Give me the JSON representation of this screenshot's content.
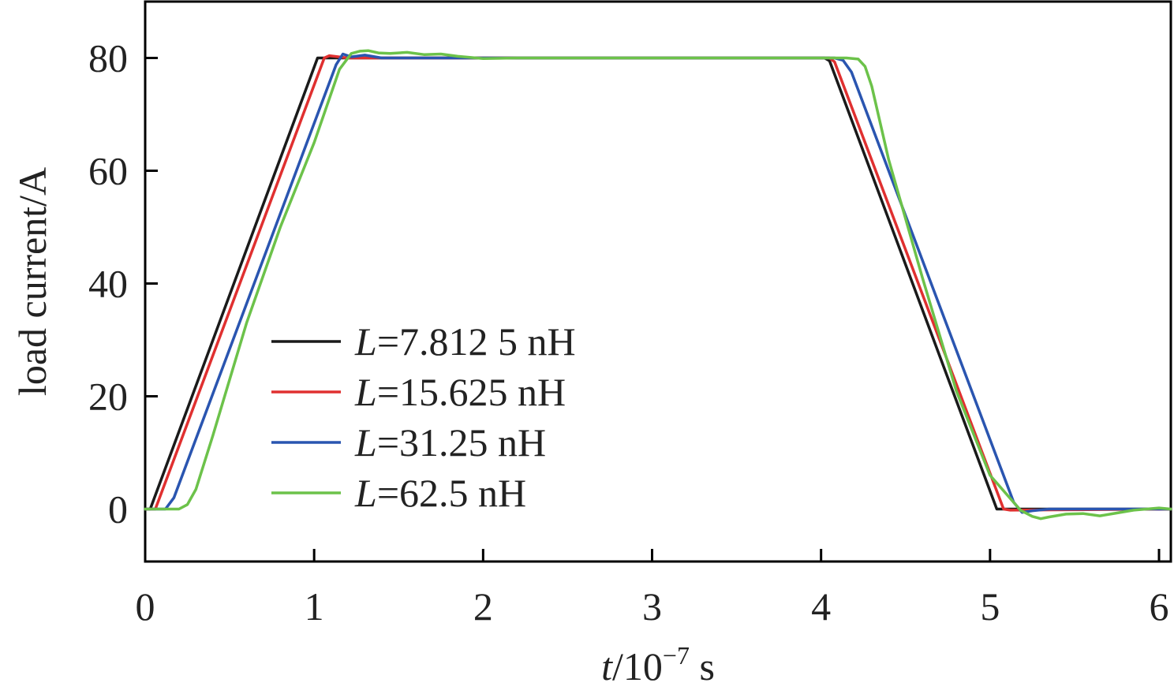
{
  "chart_data": {
    "type": "line",
    "title": "",
    "xlabel": {
      "italic": "t",
      "rest": "/10",
      "sup": "−7",
      "unit": " s"
    },
    "ylabel": "load current/A",
    "xlim": [
      0,
      6.07
    ],
    "ylim": [
      -9.3,
      90
    ],
    "xticks": [
      0,
      1,
      2,
      3,
      4,
      5,
      6
    ],
    "yticks": [
      0,
      20,
      40,
      60,
      80
    ],
    "grid": false,
    "legend_position": "center-left",
    "series": [
      {
        "name": "L=7.812 5 nH",
        "label_italic": "L",
        "label_rest": "=7.812 5 nH",
        "color": "#1a1a1a",
        "x": [
          0,
          0.03,
          1.02,
          1.04,
          4.02,
          4.05,
          5.04,
          5.07,
          6.07
        ],
        "y": [
          0,
          0,
          80,
          80,
          80,
          79.5,
          0,
          0,
          0
        ]
      },
      {
        "name": "L=15.625 nH",
        "label_italic": "L",
        "label_rest": "=15.625 nH",
        "color": "#e03030",
        "x": [
          0,
          0.06,
          1.06,
          1.09,
          1.2,
          4.05,
          4.08,
          5.08,
          5.12,
          6.07
        ],
        "y": [
          0,
          0,
          80,
          80.4,
          80,
          80,
          79.3,
          0,
          -0.2,
          0
        ]
      },
      {
        "name": "L=31.25 nH",
        "label_italic": "L",
        "label_rest": "=31.25 nH",
        "color": "#2a55b0",
        "x": [
          0,
          0.12,
          0.17,
          1.13,
          1.17,
          1.22,
          1.3,
          1.4,
          1.55,
          4.08,
          4.13,
          4.18,
          5.14,
          5.19,
          5.25,
          5.35,
          6.07
        ],
        "y": [
          0,
          0,
          2,
          78.8,
          80.7,
          80.2,
          80.5,
          80,
          80,
          80,
          79.6,
          77.5,
          1.2,
          -0.6,
          -0.3,
          0,
          0
        ]
      },
      {
        "name": "L=62.5 nH",
        "label_italic": "L",
        "label_rest": "=62.5 nH",
        "color": "#6cc24a",
        "x": [
          0,
          0.2,
          0.25,
          0.3,
          0.4,
          0.6,
          0.8,
          1.0,
          1.15,
          1.22,
          1.27,
          1.32,
          1.38,
          1.45,
          1.55,
          1.65,
          1.75,
          1.85,
          2.0,
          2.2,
          4.15,
          4.22,
          4.26,
          4.3,
          4.4,
          4.6,
          4.8,
          5.0,
          5.18,
          5.25,
          5.3,
          5.35,
          5.45,
          5.55,
          5.65,
          5.75,
          5.85,
          6.0,
          6.07
        ],
        "y": [
          0,
          0,
          0.8,
          3.5,
          13,
          33,
          50,
          65,
          78,
          80.8,
          81.2,
          81.3,
          80.9,
          80.8,
          81,
          80.6,
          80.7,
          80.3,
          79.9,
          80,
          80,
          79.8,
          78.5,
          75,
          62,
          41,
          21,
          6,
          -0.2,
          -1.3,
          -1.7,
          -1.4,
          -0.9,
          -0.8,
          -1.2,
          -0.7,
          -0.2,
          0.2,
          0
        ]
      }
    ]
  }
}
